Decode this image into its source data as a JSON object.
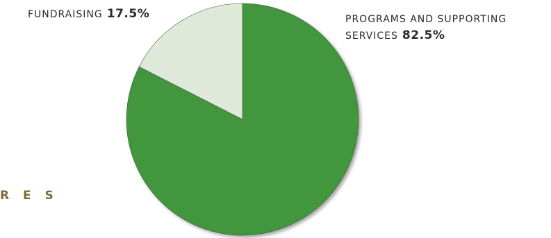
{
  "section_heading_fragment": "R E S",
  "chart_data": {
    "type": "pie",
    "slices": [
      {
        "label": "PROGRAMS AND SUPPORTING SERVICES",
        "label_line1": "PROGRAMS AND SUPPORTING",
        "label_line2": "SERVICES",
        "value": 82.5,
        "value_text": "82.5%",
        "color": "#43963c"
      },
      {
        "label": "FUNDRAISING",
        "value": 17.5,
        "value_text": "17.5%",
        "color": "#dee9d9"
      }
    ],
    "start_angle_deg": 0,
    "direction": "clockwise",
    "outline_color": "#3f5a3a"
  }
}
